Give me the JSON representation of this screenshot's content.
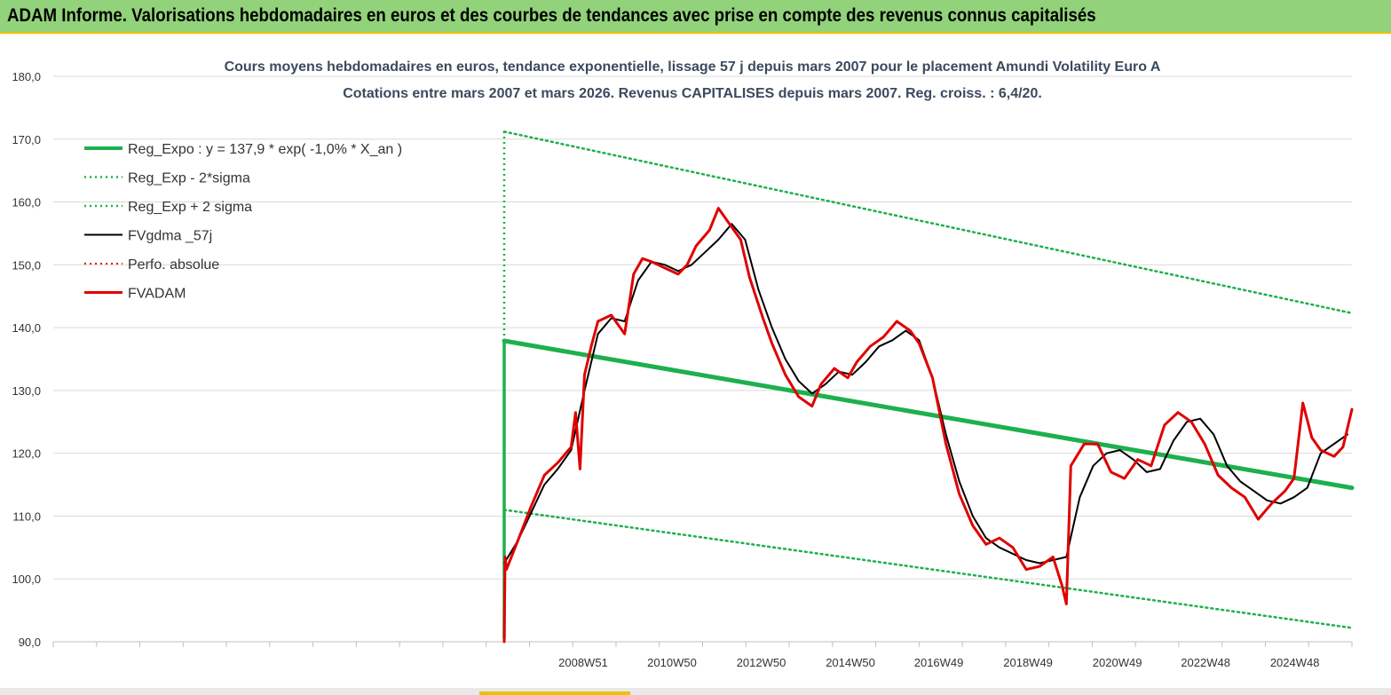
{
  "header": {
    "banner": "ADAM Informe. Valorisations hebdomadaires en euros et des courbes de tendances avec prise en compte des revenus connus capitalisés"
  },
  "chart_data": {
    "type": "line",
    "title": "Cours moyens hebdomadaires en euros, tendance exponentielle, lissage 57 j depuis mars 2007 pour le placement Amundi Volatility Euro A",
    "subtitle": "Cotations entre mars 2007 et mars 2026. Revenus CAPITALISES depuis mars 2007. Reg. croiss. : 6,4/20.",
    "ylim": [
      90,
      180
    ],
    "y_ticks": [
      "180,0",
      "170,0",
      "160,0",
      "150,0",
      "140,0",
      "130,0",
      "120,0",
      "110,0",
      "100,0",
      "90,0"
    ],
    "x_range": [
      2007.2,
      2026.2
    ],
    "x_ticks": [
      {
        "label": "2008W51",
        "year": 2008.97
      },
      {
        "label": "2010W50",
        "year": 2010.96
      },
      {
        "label": "2012W50",
        "year": 2012.96
      },
      {
        "label": "2014W50",
        "year": 2014.96
      },
      {
        "label": "2016W49",
        "year": 2016.94
      },
      {
        "label": "2018W49",
        "year": 2018.94
      },
      {
        "label": "2020W49",
        "year": 2020.94
      },
      {
        "label": "2022W48",
        "year": 2022.92
      },
      {
        "label": "2024W48",
        "year": 2024.92
      }
    ],
    "grid": true,
    "legend_position": "top-left",
    "series": [
      {
        "name": "Reg_Expo : y = 137,9 * exp( -1,0% *  X_an )",
        "color": "#1db04e",
        "style": "solid",
        "width": 5,
        "x": [
          2007.2,
          2026.2
        ],
        "y": [
          137.9,
          114.5
        ]
      },
      {
        "name": "Reg_Exp - 2*sigma",
        "color": "#1db04e",
        "style": "dotted",
        "width": 2.5,
        "x": [
          2007.2,
          2026.2
        ],
        "y": [
          111.0,
          92.2
        ]
      },
      {
        "name": "Reg_Exp + 2 sigma",
        "color": "#1db04e",
        "style": "dotted",
        "width": 2.5,
        "x": [
          2007.2,
          2026.2
        ],
        "y": [
          171.2,
          142.3
        ]
      },
      {
        "name": "FVgdma _57j",
        "color": "#000000",
        "style": "solid",
        "width": 2,
        "x": [
          2007.2,
          2007.5,
          2007.8,
          2008.1,
          2008.4,
          2008.7,
          2009.0,
          2009.3,
          2009.6,
          2009.9,
          2010.2,
          2010.5,
          2010.8,
          2011.1,
          2011.4,
          2011.7,
          2012.0,
          2012.3,
          2012.6,
          2012.9,
          2013.2,
          2013.5,
          2013.8,
          2014.1,
          2014.4,
          2014.7,
          2015.0,
          2015.3,
          2015.6,
          2015.9,
          2016.2,
          2016.5,
          2016.8,
          2017.1,
          2017.4,
          2017.7,
          2018.0,
          2018.3,
          2018.6,
          2018.9,
          2019.2,
          2019.5,
          2019.8,
          2020.1,
          2020.4,
          2020.7,
          2021.0,
          2021.3,
          2021.6,
          2021.9,
          2022.2,
          2022.5,
          2022.8,
          2023.1,
          2023.4,
          2023.7,
          2024.0,
          2024.3,
          2024.6,
          2024.9,
          2025.2,
          2025.5,
          2025.8,
          2026.1
        ],
        "y": [
          102.5,
          106.0,
          110.5,
          115.0,
          117.5,
          120.5,
          130.0,
          139.0,
          141.5,
          141.0,
          147.5,
          150.5,
          150.0,
          149.0,
          150.0,
          152.0,
          154.0,
          156.5,
          154.0,
          146.0,
          140.0,
          135.0,
          131.5,
          129.5,
          131.0,
          133.0,
          132.5,
          134.5,
          137.0,
          138.0,
          139.5,
          138.0,
          132.0,
          123.0,
          115.5,
          110.0,
          106.5,
          105.0,
          104.0,
          103.0,
          102.5,
          103.0,
          103.5,
          113.0,
          118.0,
          120.0,
          120.5,
          119.0,
          117.0,
          117.5,
          122.0,
          125.0,
          125.5,
          123.0,
          118.0,
          115.5,
          114.0,
          112.5,
          112.0,
          113.0,
          114.5,
          120.0,
          121.5,
          123.0
        ]
      },
      {
        "name": "Perfo. absolue",
        "color": "#e00000",
        "style": "dotted",
        "width": 2,
        "x": [],
        "y": []
      },
      {
        "name": "FVADAM",
        "color": "#e00000",
        "style": "solid",
        "width": 3,
        "x": [
          2007.2,
          2007.22,
          2007.25,
          2007.5,
          2007.8,
          2008.1,
          2008.4,
          2008.7,
          2008.8,
          2008.9,
          2009.0,
          2009.15,
          2009.3,
          2009.6,
          2009.9,
          2010.1,
          2010.3,
          2010.5,
          2010.8,
          2011.1,
          2011.3,
          2011.5,
          2011.8,
          2012.0,
          2012.2,
          2012.5,
          2012.7,
          2013.0,
          2013.2,
          2013.5,
          2013.8,
          2014.1,
          2014.3,
          2014.6,
          2014.9,
          2015.1,
          2015.4,
          2015.7,
          2016.0,
          2016.3,
          2016.5,
          2016.8,
          2017.1,
          2017.4,
          2017.7,
          2018.0,
          2018.3,
          2018.6,
          2018.9,
          2019.2,
          2019.5,
          2019.7,
          2019.8,
          2019.9,
          2020.2,
          2020.5,
          2020.8,
          2021.1,
          2021.4,
          2021.7,
          2022.0,
          2022.3,
          2022.6,
          2022.9,
          2023.2,
          2023.5,
          2023.8,
          2024.1,
          2024.4,
          2024.7,
          2024.9,
          2025.1,
          2025.3,
          2025.5,
          2025.8,
          2026.0,
          2026.2
        ],
        "y": [
          90.0,
          103.5,
          101.5,
          106.0,
          111.5,
          116.5,
          118.5,
          121.0,
          126.5,
          117.5,
          132.5,
          137.0,
          141.0,
          142.0,
          139.0,
          148.5,
          151.0,
          150.5,
          149.5,
          148.5,
          150.0,
          153.0,
          155.5,
          159.0,
          157.0,
          154.0,
          148.0,
          141.5,
          137.5,
          132.5,
          129.0,
          127.5,
          131.0,
          133.5,
          132.0,
          134.5,
          137.0,
          138.5,
          141.0,
          139.5,
          137.5,
          132.0,
          121.5,
          113.5,
          108.5,
          105.5,
          106.5,
          105.0,
          101.5,
          102.0,
          103.5,
          99.0,
          96.0,
          118.0,
          121.5,
          121.5,
          117.0,
          116.0,
          119.0,
          118.0,
          124.5,
          126.5,
          125.0,
          121.5,
          116.5,
          114.5,
          113.0,
          109.5,
          112.0,
          114.0,
          116.0,
          128.0,
          122.5,
          120.5,
          119.5,
          121.0,
          127.0
        ]
      }
    ]
  }
}
